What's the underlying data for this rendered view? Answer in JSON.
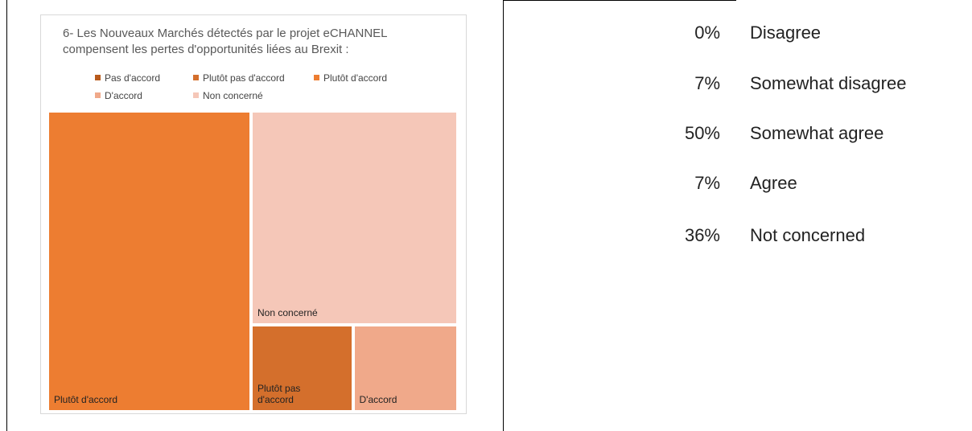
{
  "chart_data": {
    "type": "treemap",
    "title": "6- Les Nouveaux Marchés détectés par le projet eCHANNEL compensent les pertes d'opportunités liées au Brexit :",
    "categories": [
      "Pas d'accord",
      "Plutôt pas d'accord",
      "Plutôt d'accord",
      "D'accord",
      "Non concerné"
    ],
    "values": [
      0,
      7,
      50,
      7,
      36
    ],
    "colors": [
      "#b85a1c",
      "#d46f2c",
      "#ed7d31",
      "#f0a98a",
      "#f5c7b8"
    ]
  },
  "list": [
    {
      "percent": "0%",
      "label": "Disagree"
    },
    {
      "percent": "7%",
      "label": "Somewhat disagree"
    },
    {
      "percent": "50%",
      "label": "Somewhat agree"
    },
    {
      "percent": "7%",
      "label": "Agree"
    },
    {
      "percent": "36%",
      "label": "Not concerned"
    }
  ]
}
